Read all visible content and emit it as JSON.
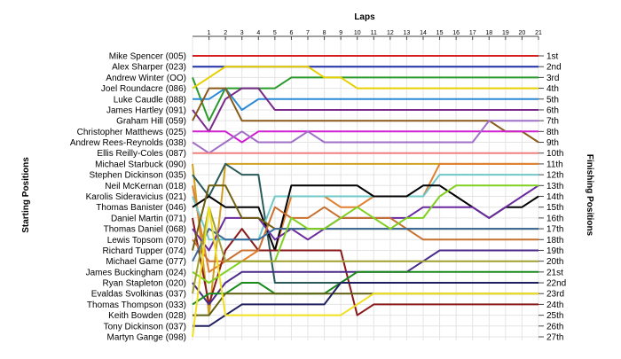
{
  "chart_data": {
    "type": "line",
    "title": "",
    "xlabel": "Laps",
    "ylabel_left": "Starting Positions",
    "ylabel_right": "Finishing Positions",
    "x_ticks": [
      "1",
      "2",
      "3",
      "4",
      "5",
      "6",
      "7",
      "8",
      "9",
      "10",
      "11",
      "12",
      "13",
      "14",
      "15",
      "16",
      "17",
      "18",
      "19",
      "20",
      "21"
    ],
    "xlim": [
      0,
      21
    ],
    "ylim": [
      1,
      27
    ],
    "grid": true,
    "drivers": [
      "Mike Spencer (005)",
      "Alex Sharper (023)",
      "Andrew Winter (OO)",
      "Joel Roundacre (086)",
      "Luke Caudle (088)",
      "James Hartley (091)",
      "Graham Hill (059)",
      "Christopher Matthews (025)",
      "Andrew Rees-Reynolds (038)",
      "Ellis Reilly-Coles (087)",
      "Michael Starbuck (090)",
      "Stephen Dickinson (035)",
      "Neil McKernan (018)",
      "Karolis Sideravicius (021)",
      "Thomas Banister (046)",
      "Daniel Martin (071)",
      "Thomas Daniel (068)",
      "Lewis Topsom (070)",
      "Richard Tupper (074)",
      "Michael Game (077)",
      "James Buckingham (024)",
      "Ryan Stapleton (020)",
      "Evaldas Svolkinas (037)",
      "Thomas Thompson (033)",
      "Keith Bowden (028)",
      "Tony Dickinson (037)",
      "Martyn Gange (098)"
    ],
    "finish_labels": [
      "1st",
      "2nd",
      "3rd",
      "4th",
      "5th",
      "6th",
      "7th",
      "8th",
      "9th",
      "10th",
      "11th",
      "12th",
      "13th",
      "14th",
      "15th",
      "16th",
      "17th",
      "18th",
      "19th",
      "20th",
      "21st",
      "22nd",
      "23rd",
      "24th",
      "25th",
      "26th",
      "27th"
    ],
    "series": [
      {
        "color": "#d62020",
        "values": [
          1,
          1,
          1,
          1,
          1,
          1,
          1,
          1,
          1,
          1,
          1,
          1,
          1,
          1,
          1,
          1,
          1,
          1,
          1,
          1,
          1,
          1
        ]
      },
      {
        "color": "#1f2fa8",
        "values": [
          2,
          2,
          2,
          2,
          2,
          2,
          2,
          2,
          2,
          2,
          2,
          2,
          2,
          2,
          2,
          2,
          2,
          2,
          2,
          2,
          2,
          2
        ]
      },
      {
        "color": "#2a9a2a",
        "values": [
          3,
          7,
          4,
          4,
          4,
          4,
          3,
          3,
          3,
          3,
          3,
          3,
          3,
          3,
          3,
          3,
          3,
          3,
          3,
          3,
          3,
          3
        ]
      },
      {
        "color": "#e8d000",
        "values": [
          4,
          3,
          2,
          2,
          2,
          2,
          2,
          2,
          3,
          3,
          4,
          4,
          4,
          4,
          4,
          4,
          4,
          4,
          4,
          4,
          4,
          4
        ]
      },
      {
        "color": "#2a8ad6",
        "values": [
          5,
          5,
          4,
          6,
          5,
          5,
          5,
          5,
          5,
          5,
          5,
          5,
          5,
          5,
          5,
          5,
          5,
          5,
          5,
          5,
          5,
          5
        ]
      },
      {
        "color": "#7a2a8a",
        "values": [
          6,
          8,
          5,
          4,
          4,
          6,
          6,
          6,
          6,
          6,
          6,
          6,
          6,
          6,
          6,
          6,
          6,
          6,
          6,
          6,
          6,
          6
        ]
      },
      {
        "color": "#8a5a1a",
        "values": [
          7,
          4,
          4,
          7,
          7,
          7,
          7,
          7,
          7,
          7,
          7,
          7,
          7,
          7,
          7,
          7,
          7,
          7,
          7,
          8,
          8,
          9
        ]
      },
      {
        "color": "#d020d0",
        "values": [
          8,
          8,
          8,
          9,
          8,
          8,
          8,
          8,
          8,
          8,
          8,
          8,
          8,
          8,
          8,
          8,
          8,
          8,
          8,
          8,
          8,
          8
        ]
      },
      {
        "color": "#a070c8",
        "values": [
          9,
          10,
          9,
          8,
          9,
          9,
          9,
          8,
          9,
          9,
          9,
          9,
          9,
          9,
          9,
          9,
          9,
          9,
          7,
          7,
          7,
          7
        ]
      },
      {
        "color": "#f08080",
        "values": [
          10,
          10,
          10,
          10,
          10,
          10,
          10,
          10,
          10,
          10,
          10,
          10,
          10,
          10,
          10,
          10,
          10,
          10,
          10,
          10,
          10,
          10
        ]
      },
      {
        "color": "#d0a020",
        "values": [
          11,
          25,
          11,
          11,
          11,
          11,
          11,
          11,
          11,
          11,
          11,
          11,
          11,
          11,
          11,
          11,
          11,
          11,
          11,
          11,
          11,
          11
        ]
      },
      {
        "color": "#2a5a5a",
        "values": [
          12,
          14,
          11,
          12,
          12,
          22,
          22,
          22,
          22,
          22,
          22,
          22,
          22,
          22,
          22,
          22,
          22,
          22,
          22,
          22,
          22,
          22
        ]
      },
      {
        "color": "#e08030",
        "values": [
          13,
          21,
          20,
          20,
          19,
          19,
          14,
          14,
          14,
          15,
          15,
          14,
          14,
          14,
          14,
          11,
          11,
          11,
          11,
          11,
          11,
          11
        ]
      },
      {
        "color": "#70c8c8",
        "values": [
          14,
          18,
          18,
          18,
          18,
          14,
          14,
          14,
          14,
          14,
          14,
          14,
          14,
          14,
          14,
          12,
          12,
          12,
          12,
          12,
          12,
          12
        ]
      },
      {
        "color": "#000000",
        "values": [
          15,
          14,
          15,
          15,
          15,
          19,
          13,
          13,
          13,
          13,
          13,
          14,
          14,
          14,
          13,
          13,
          14,
          15,
          16,
          15,
          15,
          14
        ]
      },
      {
        "color": "#8a1a1a",
        "values": [
          16,
          24,
          19,
          17,
          19,
          19,
          19,
          19,
          19,
          19,
          25,
          24,
          24,
          24,
          24,
          24,
          24,
          24,
          24,
          24,
          24,
          24
        ]
      },
      {
        "color": "#6a2aa0",
        "values": [
          17,
          19,
          16,
          16,
          16,
          18,
          17,
          18,
          17,
          16,
          16,
          16,
          16,
          16,
          15,
          15,
          15,
          15,
          16,
          15,
          14,
          13
        ]
      },
      {
        "color": "#c87030",
        "values": [
          18,
          20,
          20,
          19,
          19,
          15,
          16,
          16,
          15,
          16,
          16,
          16,
          16,
          17,
          18,
          18,
          18,
          18,
          18,
          18,
          18,
          18
        ]
      },
      {
        "color": "#706010",
        "values": [
          19,
          13,
          13,
          16,
          16,
          17,
          17,
          17,
          17,
          17,
          17,
          17,
          17,
          17,
          17,
          17,
          17,
          17,
          17,
          17,
          17,
          17
        ]
      },
      {
        "color": "#3a6a9a",
        "values": [
          20,
          17,
          18,
          18,
          18,
          17,
          17,
          17,
          17,
          17,
          17,
          17,
          17,
          17,
          17,
          17,
          17,
          17,
          17,
          17,
          17,
          17
        ]
      },
      {
        "color": "#80d020",
        "values": [
          21,
          22,
          21,
          20,
          20,
          20,
          16,
          17,
          17,
          16,
          15,
          16,
          17,
          16,
          16,
          14,
          13,
          13,
          13,
          13,
          13,
          13
        ]
      },
      {
        "color": "#4a2a8a",
        "values": [
          22,
          24,
          22,
          21,
          21,
          21,
          21,
          21,
          21,
          21,
          21,
          21,
          21,
          21,
          20,
          19,
          19,
          19,
          19,
          19,
          19,
          19
        ]
      },
      {
        "color": "#a0a030",
        "values": [
          23,
          15,
          20,
          20,
          20,
          20,
          20,
          20,
          20,
          20,
          20,
          20,
          20,
          20,
          20,
          20,
          20,
          20,
          20,
          20,
          20,
          20
        ]
      },
      {
        "color": "#1a8a1a",
        "values": [
          24,
          23,
          23,
          22,
          22,
          23,
          23,
          23,
          23,
          22,
          21,
          21,
          21,
          21,
          21,
          21,
          21,
          21,
          21,
          21,
          21,
          21
        ]
      },
      {
        "color": "#606010",
        "values": [
          25,
          25,
          23,
          23,
          23,
          23,
          23,
          23,
          23,
          23,
          23,
          23,
          23,
          23,
          23,
          23,
          23,
          23,
          23,
          23,
          23,
          23
        ]
      },
      {
        "color": "#202060",
        "values": [
          26,
          26,
          25,
          24,
          24,
          24,
          24,
          24,
          24,
          22,
          22,
          22,
          22,
          22,
          22,
          22,
          22,
          22,
          22,
          22,
          22,
          22
        ]
      },
      {
        "color": "#f0e020",
        "values": [
          27,
          15,
          25,
          25,
          25,
          25,
          25,
          25,
          25,
          25,
          24,
          23,
          23,
          23,
          23,
          23,
          23,
          23,
          23,
          23,
          23,
          23
        ]
      }
    ]
  }
}
